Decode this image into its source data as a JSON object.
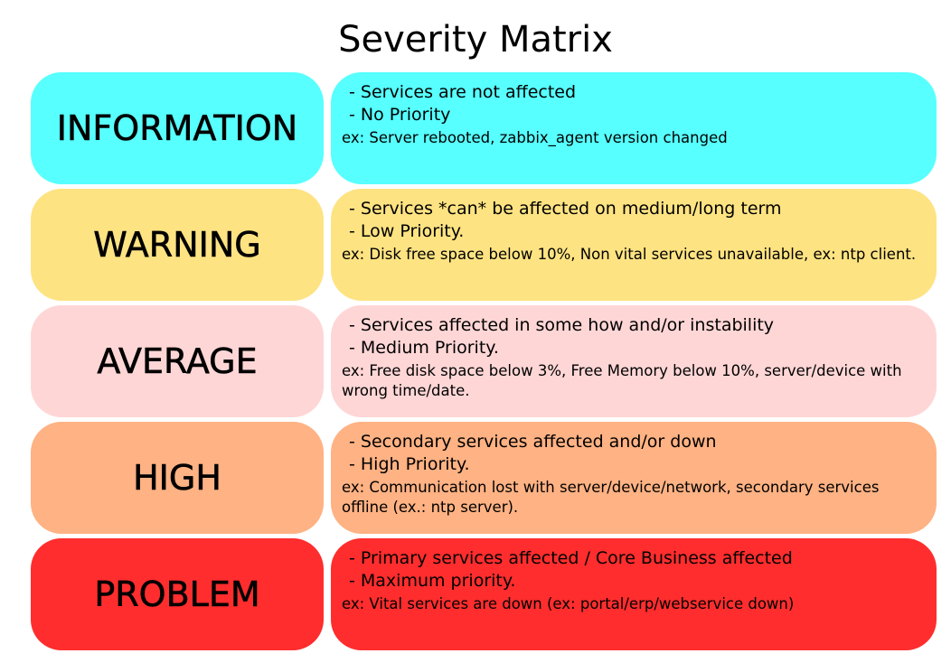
{
  "title": "Severity Matrix",
  "rows": [
    {
      "label": "INFORMATION",
      "color": "#57ffff",
      "line1": "- Services are not affected",
      "line2": "- No Priority",
      "example": "ex: Server rebooted, zabbix_agent version changed"
    },
    {
      "label": "WARNING",
      "color": "#fee382",
      "line1": "- Services *can* be affected on medium/long term",
      "line2": "- Low Priority.",
      "example": "ex: Disk free space below 10%, Non vital services unavailable, ex: ntp client."
    },
    {
      "label": "AVERAGE",
      "color": "#ffd6d6",
      "line1": "- Services affected in some how and/or instability",
      "line2": "- Medium Priority.",
      "example": "ex: Free disk space below 3%, Free Memory below 10%, server/device with wrong time/date."
    },
    {
      "label": "HIGH",
      "color": "#ffb283",
      "line1": "- Secondary services affected and/or down",
      "line2": "- High Priority.",
      "example": "ex: Communication lost with server/device/network, secondary services offline (ex.: ntp server)."
    },
    {
      "label": "PROBLEM",
      "color": "#ff2d2d",
      "line1": "- Primary services affected / Core Business affected",
      "line2": "- Maximum priority.",
      "example": "ex: Vital services are down (ex: portal/erp/webservice down)"
    }
  ]
}
